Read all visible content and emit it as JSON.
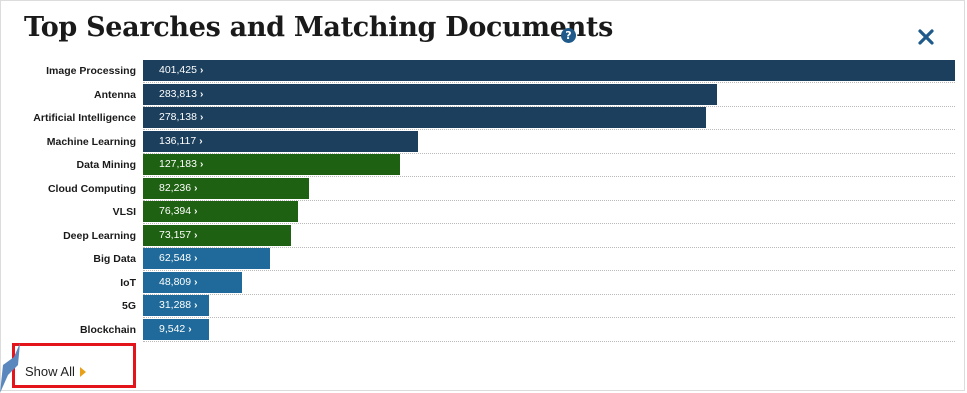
{
  "header": {
    "title": "Top Searches and Matching Documents",
    "help_icon": "question-circle-icon",
    "close_icon": "close-x-icon"
  },
  "chart_data": {
    "type": "bar",
    "orientation": "horizontal",
    "categories": [
      "Image Processing",
      "Antenna",
      "Artificial Intelligence",
      "Machine Learning",
      "Data Mining",
      "Cloud Computing",
      "VLSI",
      "Deep Learning",
      "Big Data",
      "IoT",
      "5G",
      "Blockchain"
    ],
    "values": [
      401425,
      283813,
      278138,
      136117,
      127183,
      82236,
      76394,
      73157,
      62548,
      48809,
      31288,
      9542
    ],
    "labels": [
      "401,425",
      "283,813",
      "278,138",
      "136,117",
      "127,183",
      "82,236",
      "76,394",
      "73,157",
      "62,548",
      "48,809",
      "31,288",
      "9,542"
    ],
    "colors": [
      "#1b3f5c",
      "#1b3f5c",
      "#1b3f5c",
      "#1b3f5c",
      "#1f6112",
      "#1f6112",
      "#1f6112",
      "#1f6112",
      "#1f6a9a",
      "#1f6a9a",
      "#1f6a9a",
      "#1f6a9a"
    ],
    "xlim": [
      0,
      401425
    ],
    "grid": "dotted row separators",
    "title": "Top Searches and Matching Documents"
  },
  "footer": {
    "show_all_label": "Show All",
    "show_all_arrow_color": "#e8a019",
    "highlight_color": "#e4141b"
  }
}
